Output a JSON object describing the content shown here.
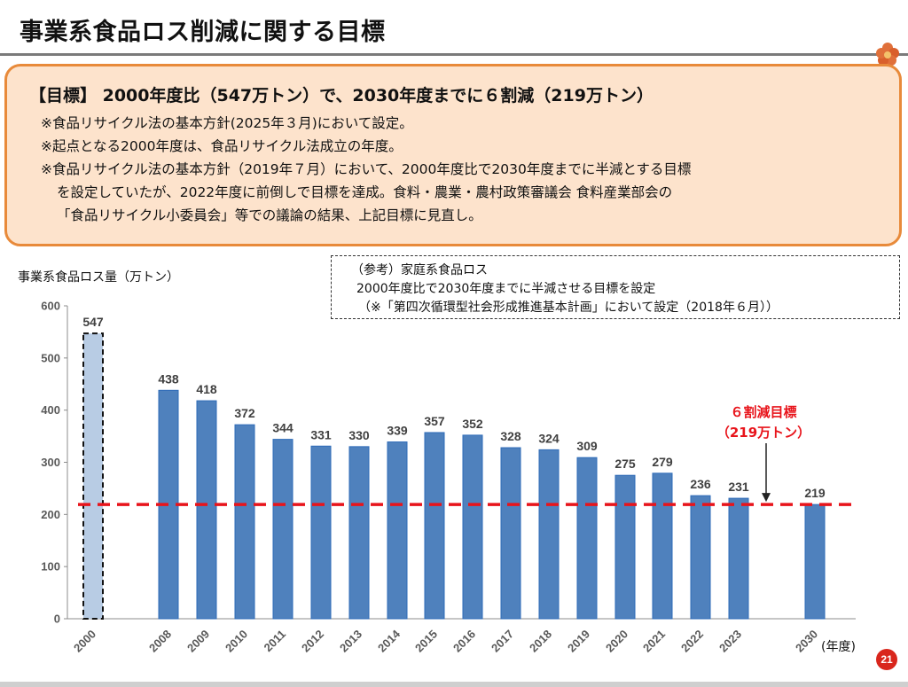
{
  "page": {
    "title": "事業系食品ロス削減に関する目標",
    "page_number": "21"
  },
  "goal": {
    "heading": "【目標】 2000年度比（547万トン）で、2030年度までに６割減（219万トン）",
    "notes": [
      "※食品リサイクル法の基本方針(2025年３月)において設定。",
      "※起点となる2000年度は、食品リサイクル法成立の年度。",
      "※食品リサイクル法の基本方針（2019年７月）において、2000年度比で2030年度までに半減とする目標",
      "を設定していたが、2022年度に前倒しで目標を達成。食料・農業・農村政策審議会 食料産業部会の",
      "「食品リサイクル小委員会」等での議論の結果、上記目標に見直し。"
    ]
  },
  "reference": {
    "line1": "（参考）家庭系食品ロス",
    "line2": "2000年度比で2030年度までに半減させる目標を設定",
    "line3": "（※「第四次循環型社会形成推進基本計画」において設定（2018年６月））"
  },
  "chart_data": {
    "type": "bar",
    "ylabel": "事業系食品ロス量（万トン）",
    "xlabel": "(年度)",
    "ylim": [
      0,
      600
    ],
    "yticks": [
      0,
      100,
      200,
      300,
      400,
      500,
      600
    ],
    "categories": [
      "2000",
      "2008",
      "2009",
      "2010",
      "2011",
      "2012",
      "2013",
      "2014",
      "2015",
      "2016",
      "2017",
      "2018",
      "2019",
      "2020",
      "2021",
      "2022",
      "2023",
      "2030"
    ],
    "values": [
      547,
      438,
      418,
      372,
      344,
      331,
      330,
      339,
      357,
      352,
      328,
      324,
      309,
      275,
      279,
      236,
      231,
      219
    ],
    "baseline_category": "2000",
    "target": {
      "value": 219,
      "label_line1": "６割減目標",
      "label_line2": "（219万トン）"
    },
    "colors": {
      "bar": "#4f81bd",
      "bar_border": "#2e6bb8",
      "baseline_bar": "#b8cce4",
      "target_line": "#e8141b"
    }
  }
}
